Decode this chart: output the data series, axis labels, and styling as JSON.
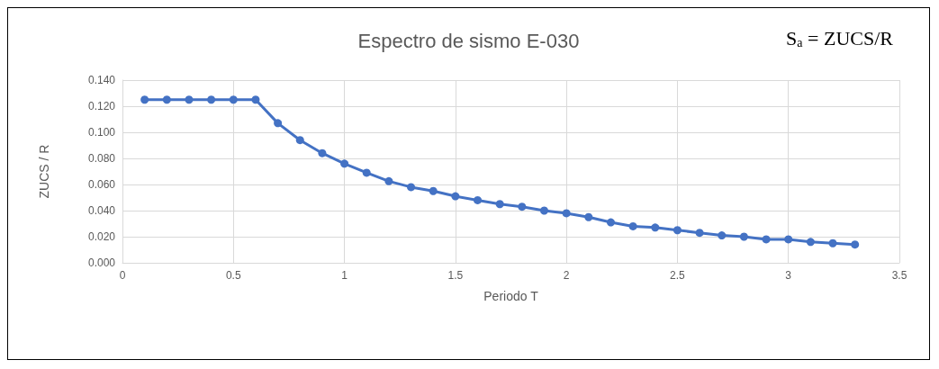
{
  "chart_data": {
    "type": "line",
    "title": "Espectro de sismo E-030",
    "xlabel": "Periodo T",
    "ylabel": "ZUCS / R",
    "annotations": [
      "S$_{a}$ = ZUCS/R"
    ],
    "x": [
      0.1,
      0.2,
      0.3,
      0.4,
      0.5,
      0.6,
      0.7,
      0.8,
      0.9,
      1.0,
      1.1,
      1.2,
      1.3,
      1.4,
      1.5,
      1.6,
      1.7,
      1.8,
      1.9,
      2.0,
      2.1,
      2.2,
      2.3,
      2.4,
      2.5,
      2.6,
      2.7,
      2.8,
      2.9,
      3.0,
      3.1,
      3.2,
      3.3
    ],
    "series": [
      {
        "color": "#4472c4",
        "values": [
          0.125,
          0.125,
          0.125,
          0.125,
          0.125,
          0.125,
          0.107,
          0.094,
          0.084,
          0.076,
          0.069,
          0.0625,
          0.058,
          0.055,
          0.051,
          0.048,
          0.045,
          0.043,
          0.04,
          0.038,
          0.035,
          0.031,
          0.028,
          0.027,
          0.025,
          0.023,
          0.021,
          0.02,
          0.018,
          0.018,
          0.016,
          0.015,
          0.014
        ]
      }
    ],
    "xlim": [
      0,
      3.5
    ],
    "xticks": [
      0,
      0.5,
      1,
      1.5,
      2,
      2.5,
      3,
      3.5
    ],
    "ylim": [
      0,
      0.14
    ],
    "yticks": [
      {
        "value": 0,
        "label": "0.000"
      },
      {
        "value": 0.02,
        "label": "0.020"
      },
      {
        "value": 0.04,
        "label": "0.040"
      },
      {
        "value": 0.06,
        "label": "0.060"
      },
      {
        "value": 0.08,
        "label": "0.080"
      },
      {
        "value": 0.1,
        "label": "0.100"
      },
      {
        "value": 0.12,
        "label": "0.120"
      },
      {
        "value": 0.14,
        "label": "0.140"
      }
    ],
    "grid": true,
    "marker": "circle",
    "line_style": "solid"
  }
}
